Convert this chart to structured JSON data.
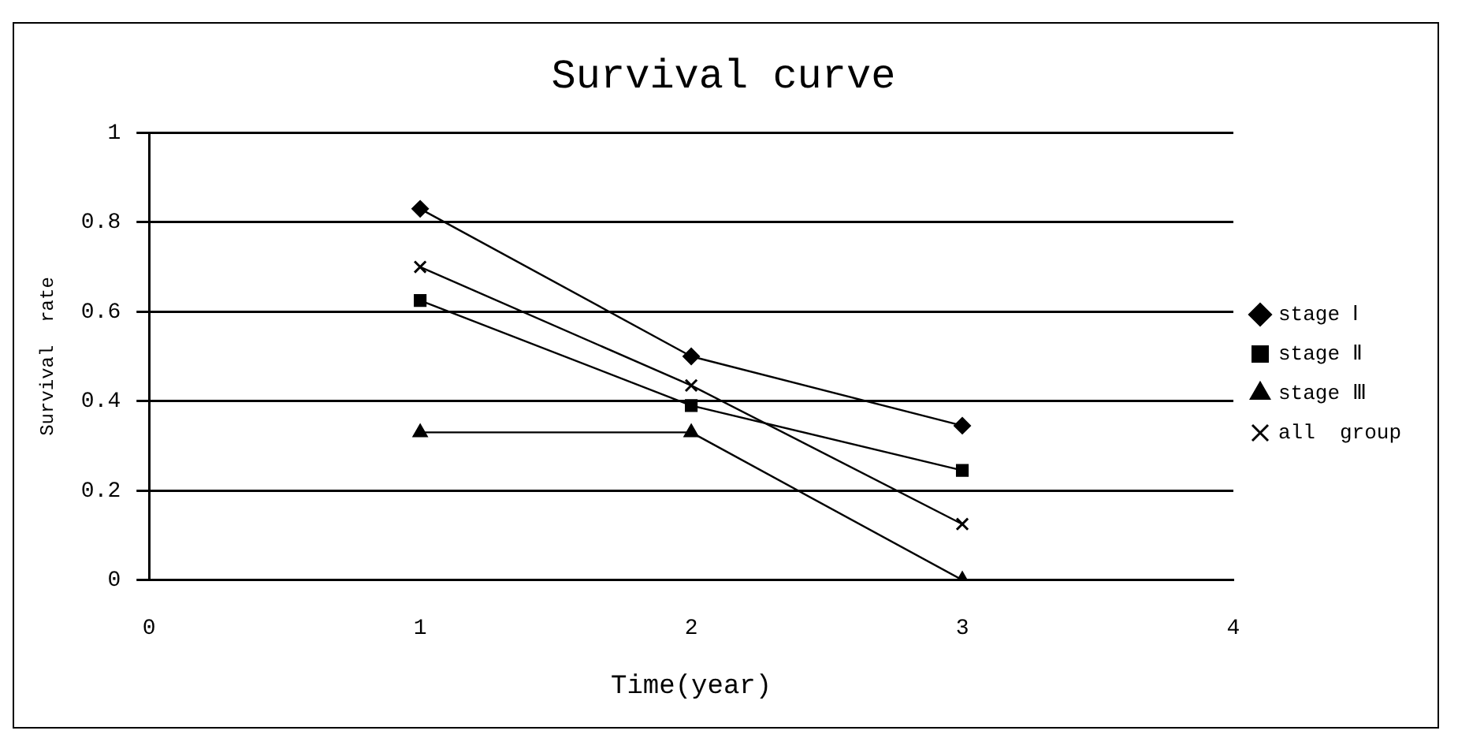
{
  "chart_data": {
    "type": "line",
    "title": "Survival curve",
    "xlabel": "Time(year)",
    "ylabel": "Survival  rate",
    "x": [
      1,
      2,
      3
    ],
    "series": [
      {
        "name": "stage Ⅰ",
        "color": "#000000",
        "marker": "diamond",
        "values": [
          0.83,
          0.5,
          0.345
        ]
      },
      {
        "name": "stage Ⅱ",
        "color": "#000000",
        "marker": "square",
        "values": [
          0.625,
          0.39,
          0.245
        ]
      },
      {
        "name": "stage Ⅲ",
        "color": "#000000",
        "marker": "triangle",
        "values": [
          0.33,
          0.33,
          0
        ]
      },
      {
        "name": "all  group",
        "color": "#000000",
        "marker": "cross",
        "values": [
          0.7,
          0.435,
          0.125
        ]
      }
    ],
    "xlim": [
      0,
      4
    ],
    "xticks": [
      0,
      1,
      2,
      3,
      4
    ],
    "ylim": [
      0,
      1
    ],
    "yticks": [
      0,
      0.2,
      0.4,
      0.6,
      0.8,
      1
    ],
    "grid": "y",
    "legend": "right",
    "line_style": "solid"
  }
}
